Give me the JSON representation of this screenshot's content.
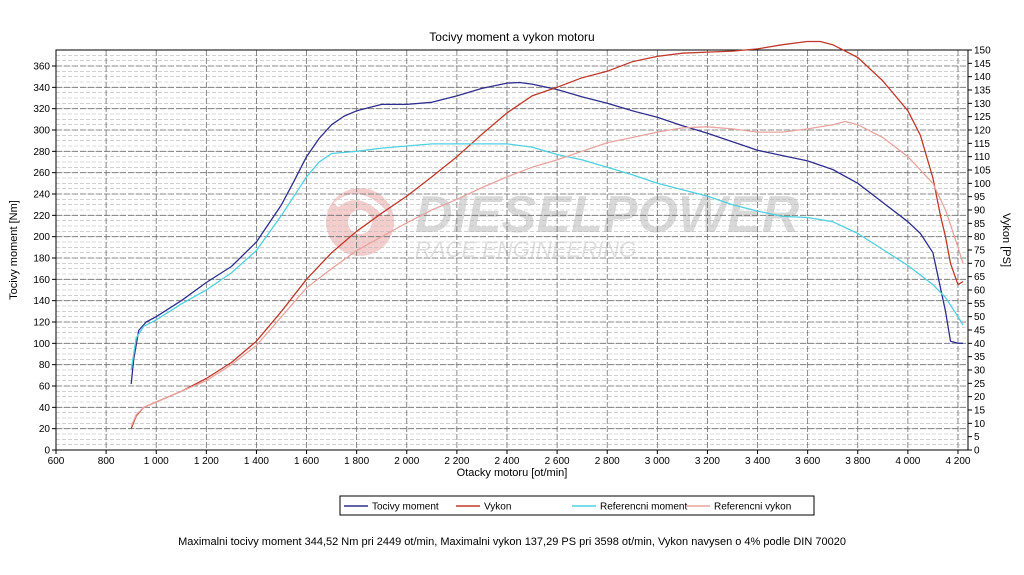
{
  "chart_data": {
    "type": "line",
    "title": "Tocivy moment a vykon motoru",
    "xlabel": "Otacky motoru [ot/min]",
    "ylabel_left": "Tocivy moment [Nm]",
    "ylabel_right": "Vykon [PS]",
    "xlim": [
      600,
      4240
    ],
    "ylim_left": [
      0,
      375
    ],
    "ylim_right": [
      0,
      150
    ],
    "x_ticks": [
      "600",
      "800",
      "1 000",
      "1 200",
      "1 400",
      "1 600",
      "1 800",
      "2 000",
      "2 200",
      "2 400",
      "2 600",
      "2 800",
      "3 000",
      "3 200",
      "3 400",
      "3 600",
      "3 800",
      "4 000",
      "4 200"
    ],
    "y_left_ticks": [
      "0",
      "20",
      "40",
      "60",
      "80",
      "100",
      "120",
      "140",
      "160",
      "180",
      "200",
      "220",
      "240",
      "260",
      "280",
      "300",
      "320",
      "340",
      "360"
    ],
    "y_right_ticks": [
      "0",
      "5",
      "10",
      "15",
      "20",
      "25",
      "30",
      "35",
      "40",
      "45",
      "50",
      "55",
      "60",
      "65",
      "70",
      "75",
      "80",
      "85",
      "90",
      "95",
      "100",
      "105",
      "110",
      "115",
      "120",
      "125",
      "130",
      "135",
      "140",
      "145",
      "150"
    ],
    "grid": true,
    "legend_position": "bottom",
    "series": [
      {
        "name": "Tocivy moment",
        "axis": "left",
        "color": "#2e2e8e",
        "x": [
          900,
          910,
          930,
          960,
          1000,
          1100,
          1200,
          1300,
          1400,
          1500,
          1550,
          1600,
          1650,
          1700,
          1750,
          1800,
          1900,
          2000,
          2100,
          2200,
          2300,
          2400,
          2449,
          2500,
          2600,
          2700,
          2800,
          2900,
          3000,
          3100,
          3200,
          3300,
          3400,
          3500,
          3600,
          3700,
          3800,
          3900,
          4000,
          4050,
          4100,
          4150,
          4170,
          4200,
          4220
        ],
        "y": [
          62,
          85,
          112,
          120,
          125,
          140,
          157,
          172,
          195,
          230,
          252,
          275,
          292,
          305,
          313,
          318,
          324,
          324,
          326,
          332,
          339,
          344,
          344.5,
          343,
          338,
          331,
          325,
          318,
          312,
          304,
          297,
          289,
          281,
          276,
          271,
          263,
          250,
          232,
          214,
          203,
          185,
          130,
          102,
          100,
          100
        ]
      },
      {
        "name": "Vykon",
        "axis": "left",
        "color": "#c0392b",
        "x": [
          900,
          920,
          950,
          1000,
          1100,
          1200,
          1300,
          1400,
          1500,
          1600,
          1700,
          1800,
          1900,
          2000,
          2100,
          2200,
          2300,
          2400,
          2500,
          2600,
          2700,
          2800,
          2900,
          3000,
          3100,
          3200,
          3300,
          3400,
          3500,
          3598,
          3650,
          3700,
          3800,
          3900,
          4000,
          4050,
          4100,
          4130,
          4150,
          4170,
          4200,
          4220
        ],
        "x_note": "",
        "y": [
          20,
          32,
          40,
          45,
          55,
          67,
          82,
          102,
          130,
          160,
          185,
          205,
          222,
          238,
          256,
          275,
          296,
          316,
          332,
          340,
          349,
          355,
          364,
          369,
          372,
          373,
          374,
          376,
          380,
          383,
          383,
          380,
          368,
          346,
          318,
          295,
          255,
          220,
          200,
          175,
          155,
          158
        ]
      },
      {
        "name": "Referencni moment",
        "axis": "left",
        "color": "#4fd1e0",
        "x": [
          900,
          920,
          950,
          1000,
          1100,
          1200,
          1300,
          1400,
          1500,
          1600,
          1650,
          1700,
          1750,
          1800,
          1900,
          2000,
          2100,
          2200,
          2300,
          2400,
          2500,
          2600,
          2700,
          2800,
          2900,
          3000,
          3100,
          3200,
          3300,
          3400,
          3500,
          3600,
          3700,
          3800,
          3900,
          4000,
          4100,
          4150,
          4200,
          4220
        ],
        "y": [
          75,
          105,
          116,
          122,
          137,
          150,
          166,
          187,
          220,
          256,
          270,
          278,
          279,
          280,
          283,
          285,
          287,
          287,
          287,
          287,
          284,
          277,
          272,
          265,
          258,
          250,
          244,
          238,
          230,
          224,
          219,
          218,
          214,
          203,
          188,
          173,
          155,
          143,
          125,
          117
        ]
      },
      {
        "name": "Referencni vykon",
        "axis": "left",
        "color": "#e8a5a0",
        "x": [
          900,
          920,
          950,
          1000,
          1100,
          1200,
          1300,
          1400,
          1500,
          1600,
          1700,
          1800,
          1900,
          2000,
          2100,
          2200,
          2300,
          2400,
          2500,
          2600,
          2700,
          2800,
          2900,
          3000,
          3100,
          3200,
          3300,
          3400,
          3500,
          3600,
          3700,
          3750,
          3800,
          3900,
          4000,
          4100,
          4150,
          4200,
          4220
        ],
        "y": [
          22,
          33,
          40,
          45,
          55,
          65,
          80,
          98,
          125,
          152,
          170,
          187,
          200,
          213,
          225,
          235,
          246,
          256,
          265,
          272,
          280,
          288,
          293,
          298,
          302,
          303,
          301,
          298,
          298,
          301,
          305,
          308,
          305,
          293,
          275,
          250,
          225,
          190,
          175
        ]
      }
    ]
  },
  "summary": "Maximalni tocivy moment 344,52 Nm pri 2449 ot/min,  Maximalni vykon 137,29 PS pri 3598 ot/min,  Vykon navysen o 4% podle DIN 70020",
  "watermark": {
    "brand": "DIESELPOWER",
    "tagline": "RACE ENGINEERING"
  }
}
